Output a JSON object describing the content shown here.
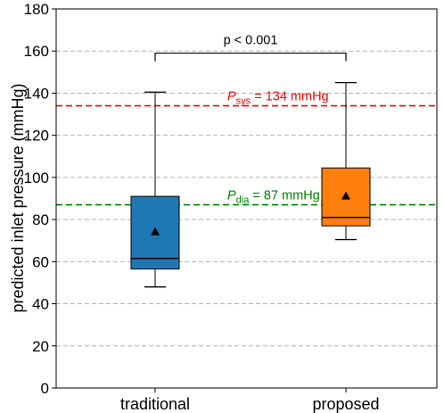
{
  "chart_data": {
    "type": "box",
    "title": "",
    "xlabel": "",
    "ylabel": "predicted inlet pressure (mmHg)",
    "ylim": [
      0,
      180
    ],
    "yticks": [
      "0",
      "20",
      "40",
      "60",
      "80",
      "100",
      "120",
      "140",
      "160",
      "180"
    ],
    "grid": "y-dashed",
    "categories": [
      "traditional",
      "proposed"
    ],
    "boxes": [
      {
        "name": "traditional",
        "color": "#1f77b4",
        "whisker_low": 48,
        "q1": 56.5,
        "median": 61.5,
        "q3": 91,
        "whisker_high": 140.5,
        "mean": 74
      },
      {
        "name": "proposed",
        "color": "#ff7f0e",
        "whisker_low": 70.5,
        "q1": 77,
        "median": 81,
        "q3": 104.5,
        "whisker_high": 145,
        "mean": 91
      }
    ],
    "reference_lines": [
      {
        "symbol": "P",
        "subscript": "sys",
        "label_suffix": " = 134 mmHg",
        "value": 134,
        "color": "#ff0000"
      },
      {
        "symbol": "P",
        "subscript": "dia",
        "label_suffix": " = 87 mmHg",
        "value": 87,
        "color": "#008000"
      }
    ],
    "significance": {
      "label": "p < 0.001",
      "y": 159
    }
  }
}
